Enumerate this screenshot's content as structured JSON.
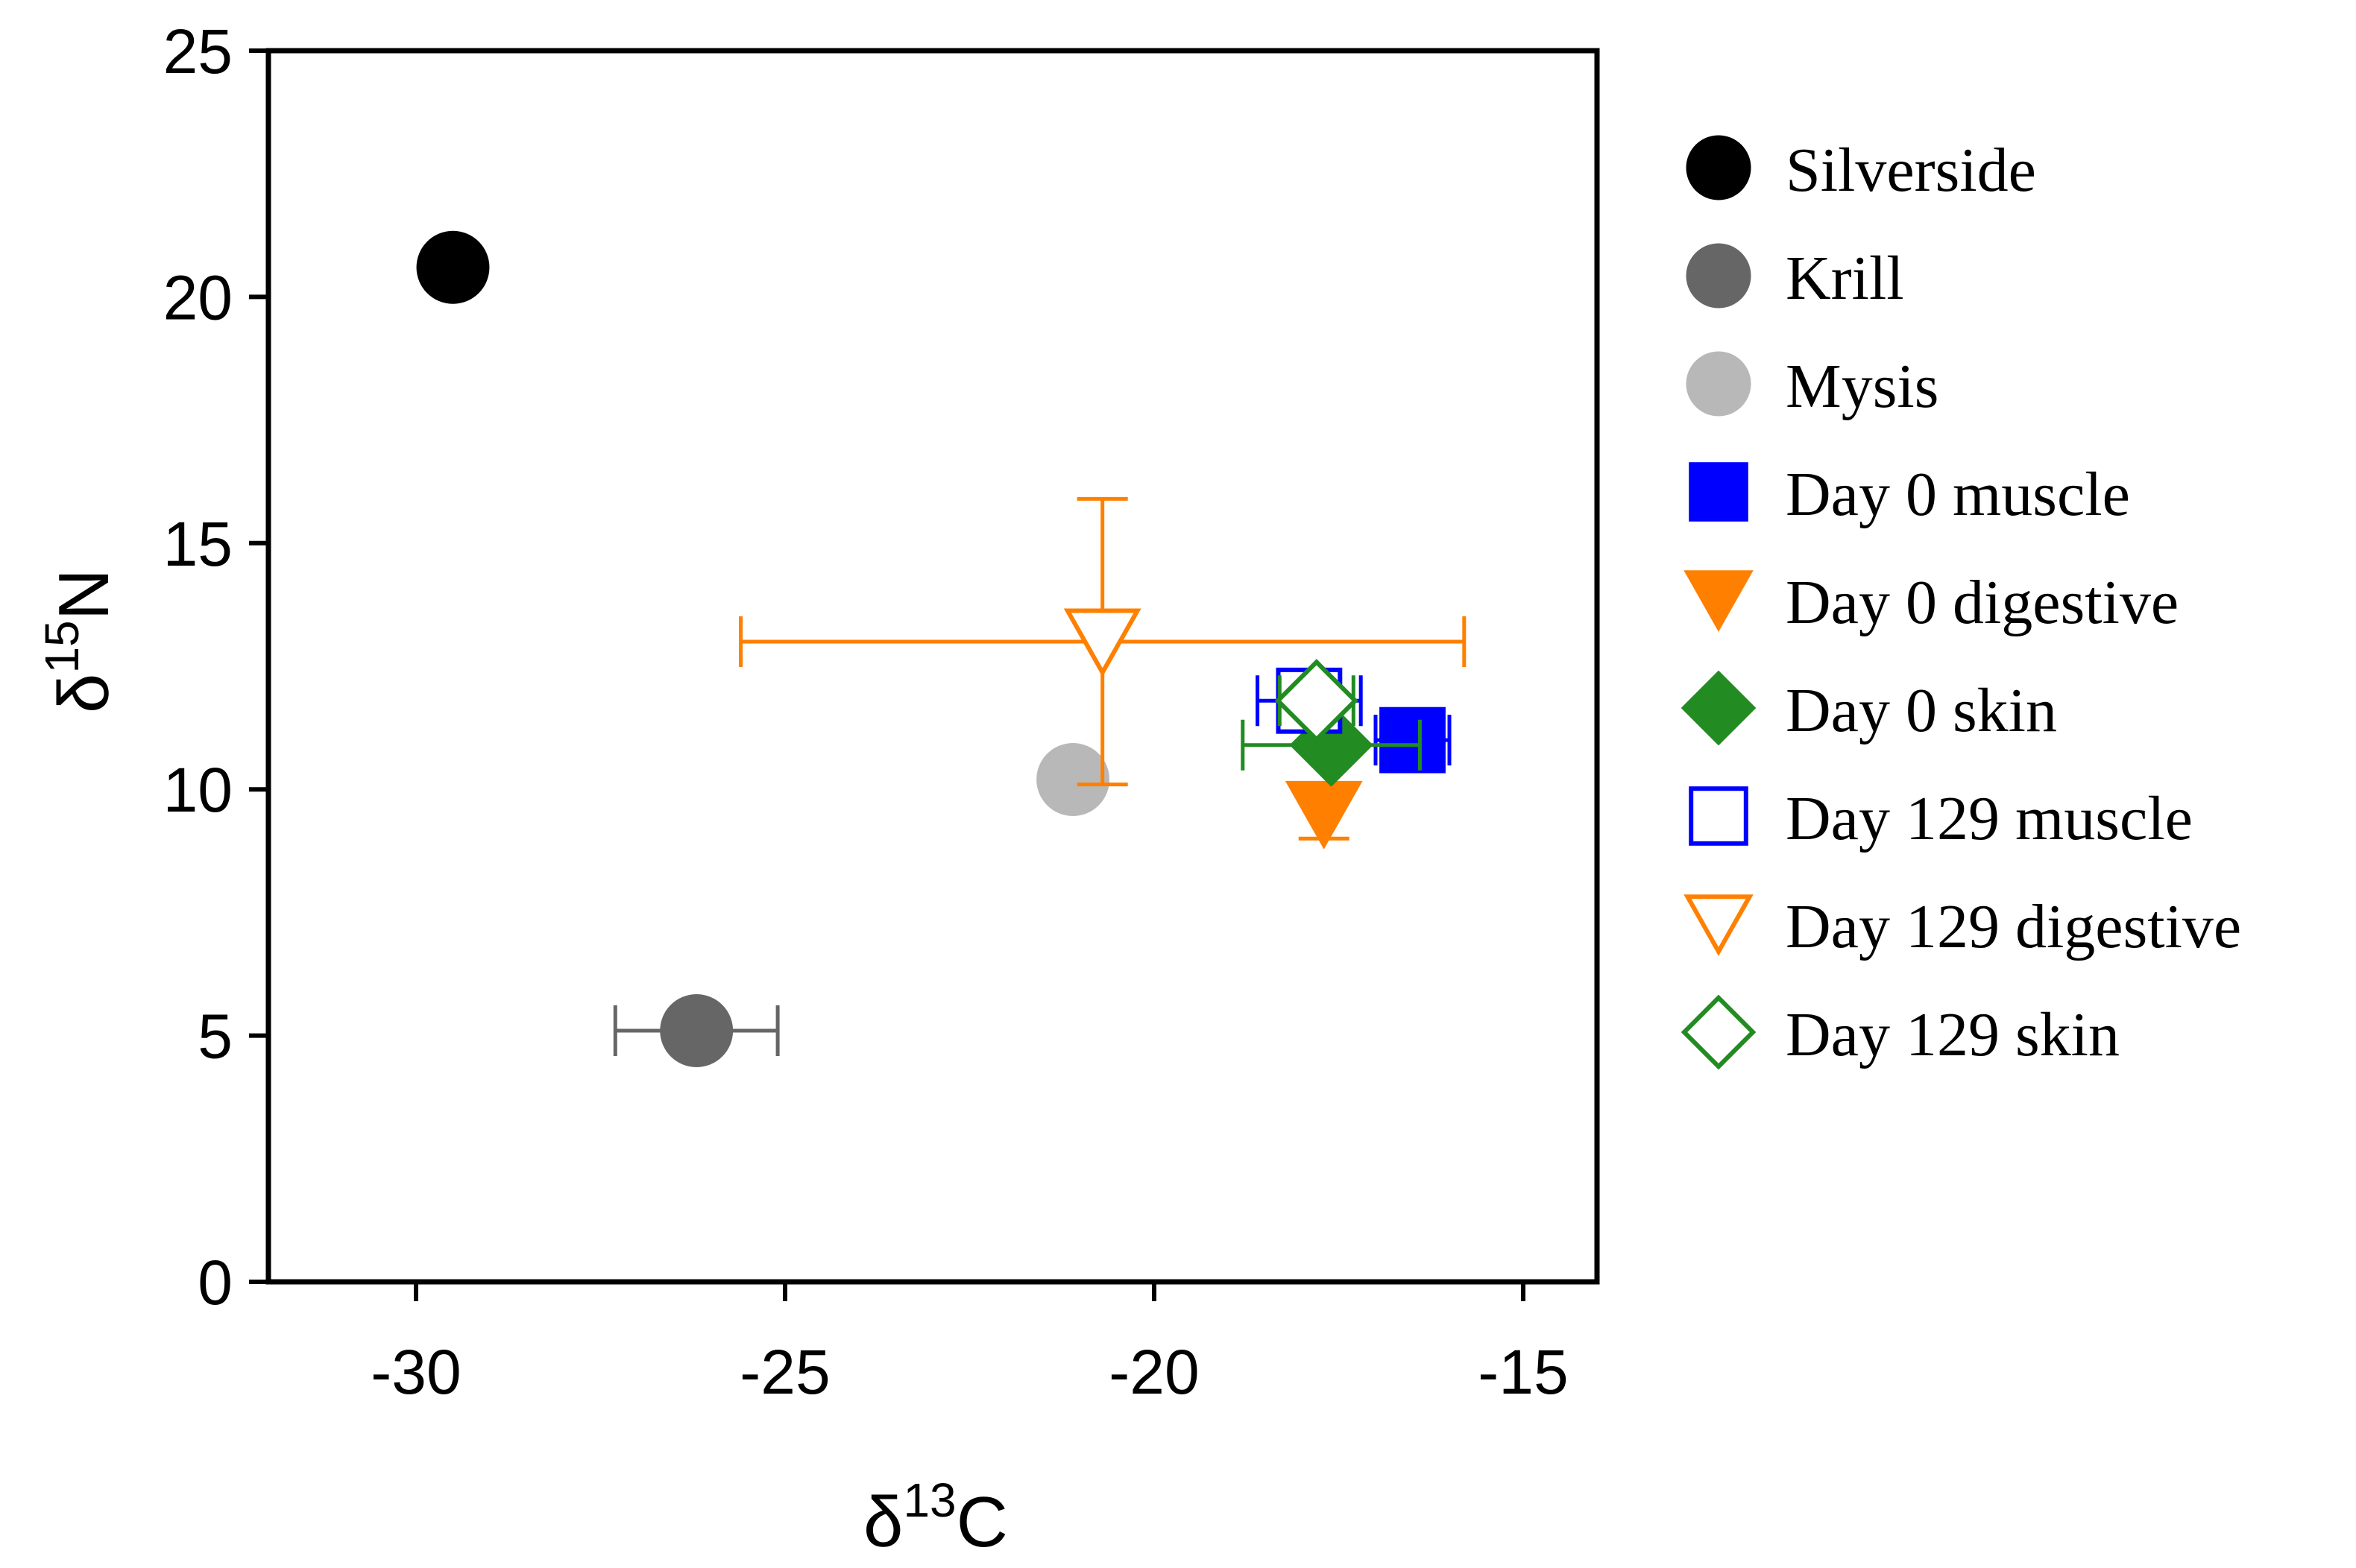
{
  "chart_data": {
    "type": "scatter",
    "title": "",
    "xlabel": {
      "symbol": "δ",
      "sup": "13",
      "element": "C"
    },
    "ylabel": {
      "symbol": "δ",
      "sup": "15",
      "element": "N"
    },
    "xlim": [
      -32,
      -14
    ],
    "ylim": [
      0,
      25
    ],
    "x_ticks": [
      -30,
      -25,
      -20,
      -15
    ],
    "y_ticks": [
      0,
      5,
      10,
      15,
      20,
      25
    ],
    "grid": false,
    "legend_position": "right",
    "series": [
      {
        "name": "Silverside",
        "marker": "circle",
        "filled": true,
        "color": "#000000",
        "x": -29.5,
        "y": 20.6,
        "xerr": [
          0,
          0
        ],
        "yerr": [
          0,
          0
        ]
      },
      {
        "name": "Krill",
        "marker": "circle",
        "filled": true,
        "color": "#666666",
        "x": -26.2,
        "y": 5.1,
        "xerr": [
          1.1,
          1.1
        ],
        "yerr": [
          0,
          0
        ]
      },
      {
        "name": "Mysis",
        "marker": "circle",
        "filled": true,
        "color": "#b8b8b8",
        "x": -21.1,
        "y": 10.2,
        "xerr": [
          0,
          0
        ],
        "yerr": [
          0.3,
          0.3
        ]
      },
      {
        "name": "Day 0 muscle",
        "marker": "square",
        "filled": true,
        "color": "#0000ff",
        "x": -16.5,
        "y": 11.0,
        "xerr": [
          0.5,
          0.5
        ],
        "yerr": [
          0,
          0
        ]
      },
      {
        "name": "Day 0 digestive",
        "marker": "triangle-down",
        "filled": true,
        "color": "#ff8000",
        "x": -17.7,
        "y": 9.5,
        "xerr": [
          0,
          0
        ],
        "yerr": [
          0.5,
          0.5
        ]
      },
      {
        "name": "Day 0 skin",
        "marker": "diamond",
        "filled": true,
        "color": "#228b22",
        "x": -17.6,
        "y": 10.9,
        "xerr": [
          1.2,
          1.2
        ],
        "yerr": [
          0,
          0
        ]
      },
      {
        "name": "Day 129 muscle",
        "marker": "square",
        "filled": false,
        "color": "#0000ff",
        "x": -17.9,
        "y": 11.8,
        "xerr": [
          0.7,
          0.7
        ],
        "yerr": [
          0,
          0
        ]
      },
      {
        "name": "Day 129 digestive",
        "marker": "triangle-down",
        "filled": false,
        "color": "#ff8000",
        "x": -20.7,
        "y": 13.0,
        "xerr": [
          4.9,
          4.9
        ],
        "yerr": [
          2.9,
          2.9
        ]
      },
      {
        "name": "Day 129 skin",
        "marker": "diamond",
        "filled": false,
        "color": "#228b22",
        "x": -17.8,
        "y": 11.8,
        "xerr": [
          0.5,
          0.5
        ],
        "yerr": [
          0,
          0
        ]
      }
    ]
  }
}
